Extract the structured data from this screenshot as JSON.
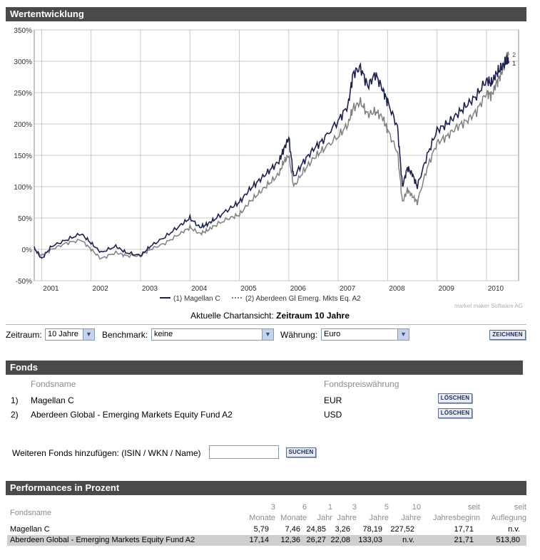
{
  "wertentwicklung": {
    "title": "Wertentwicklung"
  },
  "chart_data": {
    "type": "line",
    "title": "Wertentwicklung",
    "ylabel": "",
    "xlabel": "",
    "ylim": [
      -50,
      350
    ],
    "y_ticks": [
      "350%",
      "300%",
      "250%",
      "200%",
      "150%",
      "100%",
      "50%",
      "0%",
      "-50%"
    ],
    "y_tick_values": [
      350,
      300,
      250,
      200,
      150,
      100,
      50,
      0,
      -50
    ],
    "x_ticks": [
      "2001",
      "2002",
      "2003",
      "2004",
      "2005",
      "2006",
      "2007",
      "2008",
      "2009",
      "2010"
    ],
    "xlim": [
      2000.85,
      2010.65
    ],
    "legend": [
      "(1)  Magellan C",
      "(2)  Aberdeen Gl Emerg. Mkts Eq. A2"
    ],
    "end_markers": [
      "2",
      "1"
    ],
    "series": [
      {
        "name": "(1)  Magellan C",
        "color": "#1c2152",
        "x": [
          2000.85,
          2001.0,
          2001.2,
          2001.5,
          2001.8,
          2002.0,
          2002.2,
          2002.5,
          2002.7,
          2003.0,
          2003.2,
          2003.5,
          2003.8,
          2004.0,
          2004.2,
          2004.35,
          2004.5,
          2004.8,
          2005.0,
          2005.2,
          2005.4,
          2005.6,
          2005.8,
          2005.9,
          2006.0,
          2006.1,
          2006.3,
          2006.5,
          2006.7,
          2007.0,
          2007.2,
          2007.3,
          2007.45,
          2007.6,
          2007.75,
          2007.9,
          2008.0,
          2008.2,
          2008.3,
          2008.4,
          2008.5,
          2008.6,
          2008.8,
          2009.0,
          2009.2,
          2009.4,
          2009.6,
          2009.8,
          2010.0,
          2010.1,
          2010.2,
          2010.3,
          2010.4,
          2010.45
        ],
        "y": [
          2,
          -15,
          5,
          15,
          25,
          10,
          -5,
          5,
          -5,
          -10,
          5,
          20,
          38,
          50,
          35,
          40,
          48,
          65,
          75,
          95,
          110,
          125,
          140,
          160,
          178,
          115,
          140,
          160,
          175,
          205,
          230,
          280,
          290,
          260,
          280,
          255,
          235,
          195,
          100,
          130,
          120,
          100,
          150,
          190,
          200,
          215,
          230,
          245,
          270,
          265,
          280,
          290,
          300,
          300
        ]
      },
      {
        "name": "(2)  Aberdeen Gl Emerg. Mkts Eq. A2",
        "color": "#808080",
        "x": [
          2000.85,
          2001.0,
          2001.2,
          2001.5,
          2001.8,
          2002.0,
          2002.2,
          2002.5,
          2002.7,
          2003.0,
          2003.2,
          2003.5,
          2003.8,
          2004.0,
          2004.2,
          2004.35,
          2004.5,
          2004.8,
          2005.0,
          2005.2,
          2005.4,
          2005.6,
          2005.8,
          2005.9,
          2006.0,
          2006.1,
          2006.3,
          2006.5,
          2006.7,
          2007.0,
          2007.2,
          2007.3,
          2007.45,
          2007.6,
          2007.75,
          2007.9,
          2008.0,
          2008.2,
          2008.3,
          2008.4,
          2008.5,
          2008.6,
          2008.8,
          2009.0,
          2009.2,
          2009.4,
          2009.6,
          2009.8,
          2010.0,
          2010.1,
          2010.2,
          2010.3,
          2010.4,
          2010.45
        ],
        "y": [
          0,
          -10,
          0,
          10,
          15,
          0,
          -15,
          -5,
          -10,
          -10,
          0,
          10,
          25,
          35,
          25,
          30,
          38,
          50,
          55,
          75,
          90,
          105,
          120,
          140,
          150,
          100,
          125,
          145,
          160,
          180,
          200,
          225,
          235,
          215,
          220,
          210,
          190,
          155,
          75,
          95,
          85,
          75,
          130,
          170,
          180,
          195,
          205,
          220,
          250,
          245,
          265,
          280,
          305,
          310
        ]
      }
    ]
  },
  "chart_caption": {
    "prefix": "Aktuelle Chartansicht: ",
    "value": "Zeitraum 10 Jahre"
  },
  "watermark": "market maker Software AG",
  "controls": {
    "zeitraum_label": "Zeitraum:",
    "zeitraum_value": "10 Jahre",
    "benchmark_label": "Benchmark:",
    "benchmark_value": "keine",
    "waehrung_label": "Währung:",
    "waehrung_value": "Euro",
    "zeichnen_label": "ZEICHNEN"
  },
  "fonds": {
    "title": "Fonds",
    "col_name": "Fondsname",
    "col_currency": "Fondspreiswährung",
    "rows": [
      {
        "num": "1)",
        "name": "Magellan C",
        "currency": "EUR",
        "delete": "LÖSCHEN"
      },
      {
        "num": "2)",
        "name": "Aberdeen Global - Emerging Markets Equity Fund A2",
        "currency": "USD",
        "delete": "LÖSCHEN"
      }
    ],
    "add_label": "Weiteren Fonds hinzufügen: (ISIN / WKN / Name)",
    "add_input": "",
    "search_label": "SUCHEN"
  },
  "performance": {
    "title": "Performances in Prozent",
    "col_name": "Fondsname",
    "headers_top": [
      "3",
      "6",
      "1",
      "3",
      "5",
      "10",
      "seit",
      "seit"
    ],
    "headers_bottom": [
      "Monate",
      "Monate",
      "Jahr",
      "Jahre",
      "Jahre",
      "Jahre",
      "Jahresbeginn",
      "Auflegung"
    ],
    "rows": [
      {
        "name": "Magellan C",
        "values": [
          "5,79",
          "7,46",
          "24,85",
          "3,26",
          "78,19",
          "227,52",
          "17,71",
          "n.v."
        ]
      },
      {
        "name": "Aberdeen Global - Emerging Markets Equity Fund A2",
        "values": [
          "17,14",
          "12,36",
          "26,27",
          "22,08",
          "133,03",
          "n.v.",
          "21,71",
          "513,80"
        ]
      }
    ]
  }
}
